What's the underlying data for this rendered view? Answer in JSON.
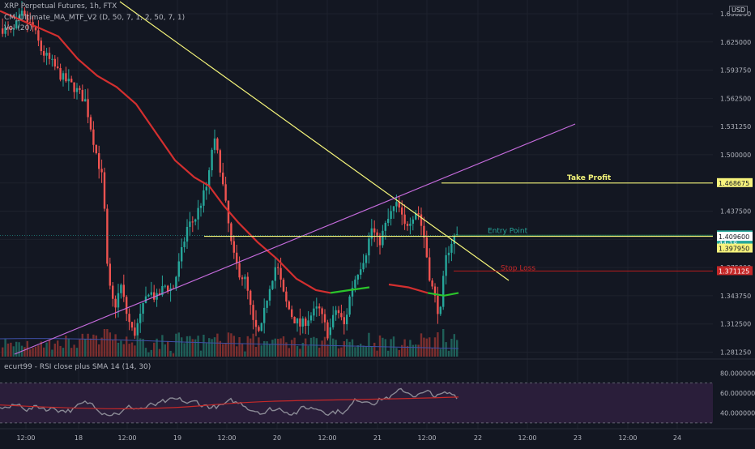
{
  "header": {
    "symbol_line": "XRP Perpetual Futures, 1h, FTX",
    "indicator_line": "CM_Ultimate_MA_MTF_V2 (D, 50, 7, 1, 2, 50, 7, 1)",
    "volume_line": "Vol (20)",
    "currency_badge": "USD"
  },
  "rsi_legend": "ecurt99 - RSI close plus SMA 14 (14, 30)",
  "colors": {
    "background": "#131722",
    "up": "#26a69a",
    "down": "#ef5350",
    "ma_red": "#d32f2f",
    "ma_green": "#2bc42b",
    "yellow_line": "#f5f57a",
    "purple_line": "#c56bdc",
    "rsi_line": "#8a8a95",
    "rsi_sma": "#c62828"
  },
  "chart_data": [
    {
      "type": "candlestick",
      "title": "XRP Perpetual Futures, 1h, FTX",
      "y_ticks": [
        "1.656250",
        "1.625000",
        "1.593750",
        "1.562500",
        "1.531250",
        "1.500000",
        "1.468750",
        "1.437500",
        "1.406250",
        "1.375000",
        "1.343750",
        "1.312500",
        "1.281250"
      ],
      "x_ticks": [
        "12:00",
        "18",
        "12:00",
        "19",
        "12:00",
        "20",
        "12:00",
        "21",
        "12:00",
        "22",
        "12:00",
        "23",
        "12:00",
        "24"
      ],
      "ylim": [
        1.2781,
        1.6625
      ],
      "series": [
        {
          "name": "CM_Ultimate_MA_MTF_V2",
          "points": [
            [
              0,
              1.6594
            ],
            [
              48,
              1.6406
            ],
            [
              72,
              1.6312
            ],
            [
              96,
              1.6062
            ],
            [
              120,
              1.5875
            ],
            [
              144,
              1.575
            ],
            [
              168,
              1.5562
            ],
            [
              192,
              1.525
            ],
            [
              216,
              1.4938
            ],
            [
              240,
              1.475
            ],
            [
              258,
              1.4656
            ],
            [
              276,
              1.4438
            ],
            [
              294,
              1.425
            ],
            [
              318,
              1.4031
            ],
            [
              342,
              1.3844
            ],
            [
              366,
              1.3625
            ],
            [
              390,
              1.35
            ],
            [
              408,
              1.3469
            ],
            [
              432,
              1.35
            ],
            [
              456,
              1.3531
            ],
            [
              480,
              1.3562
            ],
            [
              504,
              1.3531
            ],
            [
              528,
              1.3469
            ],
            [
              548,
              1.3438
            ],
            [
              566,
              1.3469
            ]
          ]
        }
      ],
      "lines": [
        {
          "name": "Take Profit",
          "value": 1.468675
        },
        {
          "name": "Entry Point",
          "value": 1.41075
        },
        {
          "name": "Stop Loss",
          "value": 1.371125
        }
      ],
      "price_labels": [
        "1.468675",
        "1.410750",
        "44:18",
        "1.409600",
        "1.397950",
        "1.371125"
      ],
      "annotations": [
        "Take Profit",
        "Entry Point",
        "Stop Loss"
      ]
    },
    {
      "type": "line",
      "title": "ecurt99 - RSI close plus SMA 14 (14, 30)",
      "y_ticks": [
        "80.000000",
        "60.000000",
        "40.000000"
      ],
      "ylim": [
        25,
        90
      ]
    }
  ]
}
